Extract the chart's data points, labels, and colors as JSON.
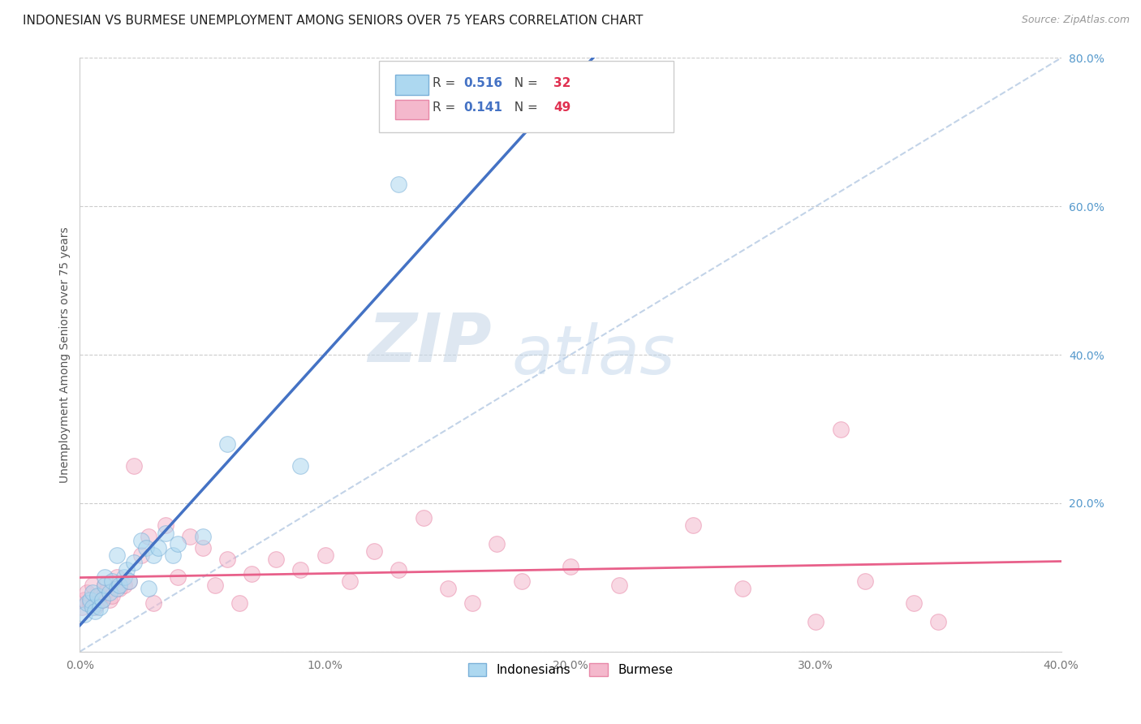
{
  "title": "INDONESIAN VS BURMESE UNEMPLOYMENT AMONG SENIORS OVER 75 YEARS CORRELATION CHART",
  "source": "Source: ZipAtlas.com",
  "ylabel": "Unemployment Among Seniors over 75 years",
  "xlim": [
    0.0,
    0.4
  ],
  "ylim": [
    0.0,
    0.8
  ],
  "xticks": [
    0.0,
    0.1,
    0.2,
    0.3,
    0.4
  ],
  "yticks": [
    0.0,
    0.2,
    0.4,
    0.6,
    0.8
  ],
  "xtick_labels": [
    "0.0%",
    "10.0%",
    "20.0%",
    "30.0%",
    "40.0%"
  ],
  "ytick_labels": [
    "",
    "20.0%",
    "40.0%",
    "60.0%",
    "80.0%"
  ],
  "background_color": "#ffffff",
  "grid_color": "#cccccc",
  "watermark_zip": "ZIP",
  "watermark_atlas": "atlas",
  "indonesian_x": [
    0.002,
    0.003,
    0.004,
    0.005,
    0.005,
    0.006,
    0.007,
    0.008,
    0.009,
    0.01,
    0.01,
    0.012,
    0.013,
    0.015,
    0.015,
    0.016,
    0.018,
    0.019,
    0.02,
    0.022,
    0.025,
    0.027,
    0.028,
    0.03,
    0.032,
    0.035,
    0.038,
    0.04,
    0.05,
    0.06,
    0.09,
    0.13
  ],
  "indonesian_y": [
    0.05,
    0.065,
    0.07,
    0.06,
    0.08,
    0.055,
    0.075,
    0.06,
    0.07,
    0.09,
    0.1,
    0.08,
    0.095,
    0.085,
    0.13,
    0.09,
    0.1,
    0.11,
    0.095,
    0.12,
    0.15,
    0.14,
    0.085,
    0.13,
    0.14,
    0.16,
    0.13,
    0.145,
    0.155,
    0.28,
    0.25,
    0.63
  ],
  "burmese_x": [
    0.001,
    0.002,
    0.003,
    0.004,
    0.005,
    0.006,
    0.007,
    0.008,
    0.009,
    0.01,
    0.01,
    0.012,
    0.013,
    0.015,
    0.016,
    0.018,
    0.02,
    0.022,
    0.025,
    0.028,
    0.03,
    0.035,
    0.04,
    0.045,
    0.05,
    0.055,
    0.06,
    0.065,
    0.07,
    0.08,
    0.09,
    0.1,
    0.11,
    0.12,
    0.13,
    0.14,
    0.15,
    0.16,
    0.17,
    0.18,
    0.2,
    0.22,
    0.25,
    0.27,
    0.3,
    0.32,
    0.34,
    0.35,
    0.31
  ],
  "burmese_y": [
    0.06,
    0.07,
    0.08,
    0.065,
    0.09,
    0.06,
    0.065,
    0.075,
    0.07,
    0.08,
    0.09,
    0.07,
    0.075,
    0.1,
    0.085,
    0.09,
    0.095,
    0.25,
    0.13,
    0.155,
    0.065,
    0.17,
    0.1,
    0.155,
    0.14,
    0.09,
    0.125,
    0.065,
    0.105,
    0.125,
    0.11,
    0.13,
    0.095,
    0.135,
    0.11,
    0.18,
    0.085,
    0.065,
    0.145,
    0.095,
    0.115,
    0.09,
    0.17,
    0.085,
    0.04,
    0.095,
    0.065,
    0.04,
    0.3
  ],
  "indonesian_color": "#add8f0",
  "burmese_color": "#f4b8cc",
  "indonesian_edge_color": "#7ab0d8",
  "burmese_edge_color": "#e888a8",
  "indonesian_line_color": "#4472c4",
  "burmese_line_color": "#e8608a",
  "diagonal_line_color": "#b8cce4",
  "scatter_size": 200,
  "scatter_alpha": 0.55,
  "r_indonesian": "0.516",
  "n_indonesian": "32",
  "r_burmese": "0.141",
  "n_burmese": "49",
  "legend_r_color": "#4472c4",
  "legend_n_color": "#e03050",
  "legend1_patch_color": "#add8f0",
  "legend2_patch_color": "#f4b8cc"
}
